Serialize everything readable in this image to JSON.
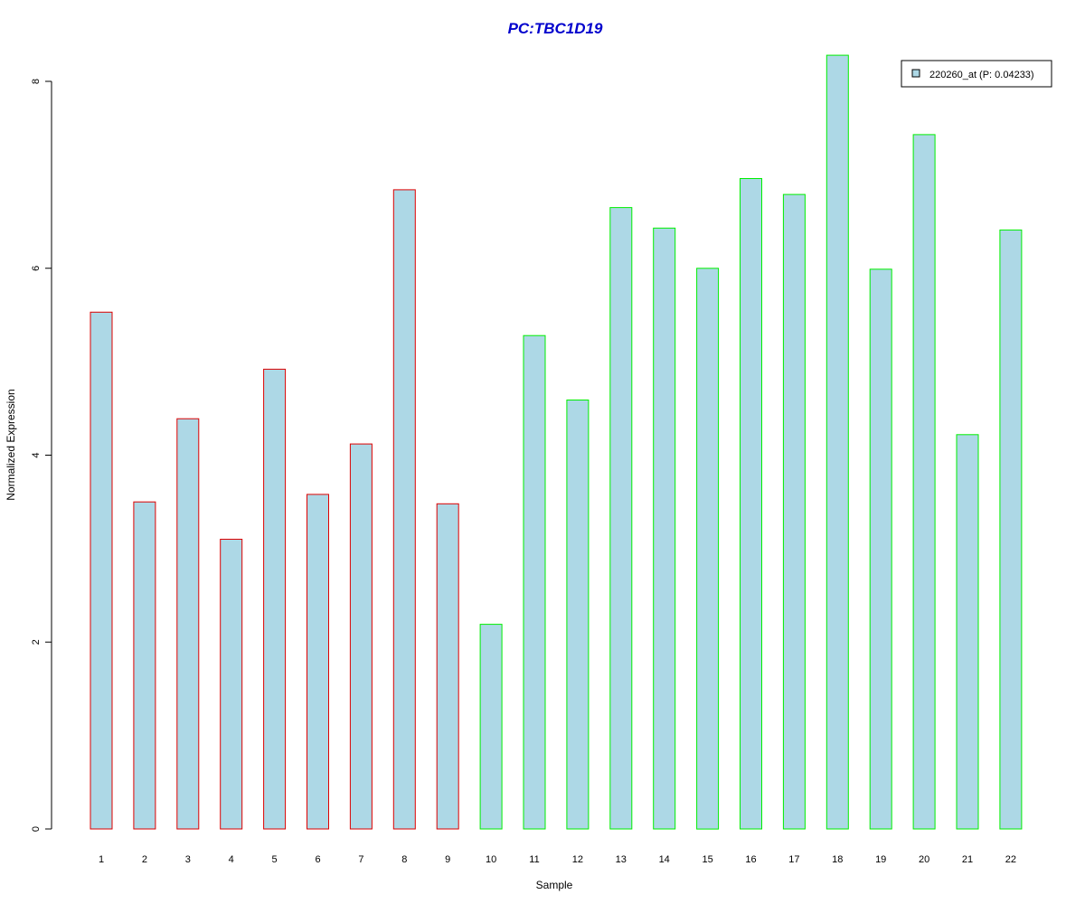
{
  "chart_data": {
    "type": "bar",
    "title": "PC:TBC1D19",
    "xlabel": "Sample",
    "ylabel": "Normalized Expression",
    "categories": [
      "1",
      "2",
      "3",
      "4",
      "5",
      "6",
      "7",
      "8",
      "9",
      "10",
      "11",
      "12",
      "13",
      "14",
      "15",
      "16",
      "17",
      "18",
      "19",
      "20",
      "21",
      "22"
    ],
    "values": [
      5.53,
      3.5,
      4.39,
      3.1,
      4.92,
      3.58,
      4.12,
      6.84,
      3.48,
      2.19,
      5.28,
      4.59,
      6.65,
      6.43,
      6.0,
      6.96,
      6.79,
      8.28,
      5.99,
      7.43,
      4.22,
      6.41
    ],
    "groups": [
      1,
      1,
      1,
      1,
      1,
      1,
      1,
      1,
      1,
      2,
      2,
      2,
      2,
      2,
      2,
      2,
      2,
      2,
      2,
      2,
      2,
      2
    ],
    "ylim": [
      0,
      8.3
    ],
    "yticks": [
      0,
      2,
      4,
      6,
      8
    ],
    "grid": false,
    "legend": {
      "placement": "top-right",
      "entries": [
        {
          "label": "220260_at (P: 0.04233)",
          "color": "#add8e6"
        }
      ]
    },
    "colors": {
      "title": "#0000cd",
      "bar_fill": "#add8e6",
      "group1_border": "#dd0000",
      "group2_border": "#00ee00"
    }
  }
}
